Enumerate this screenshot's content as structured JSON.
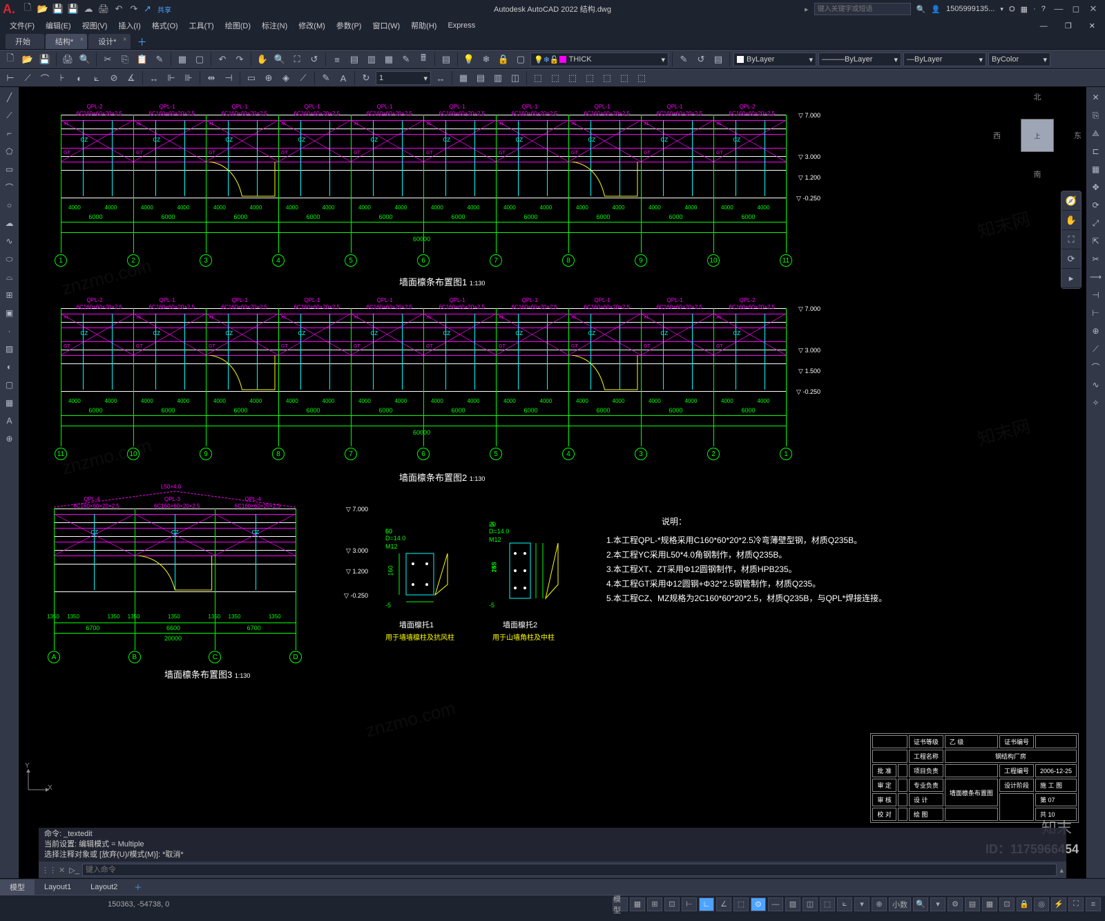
{
  "app": {
    "title": "Autodesk AutoCAD 2022   结构.dwg",
    "search_ph": "键入关键字或短语",
    "user": "1505999135..."
  },
  "menubar": [
    "文件(F)",
    "编辑(E)",
    "视图(V)",
    "插入(I)",
    "格式(O)",
    "工具(T)",
    "绘图(D)",
    "标注(N)",
    "修改(M)",
    "参数(P)",
    "窗口(W)",
    "帮助(H)",
    "Express"
  ],
  "filetabs": {
    "tabs": [
      "开始",
      "结构*",
      "设计*"
    ],
    "active_idx": 1
  },
  "layer": {
    "current": "THICK",
    "color": "ByLayer",
    "ltype": "ByLayer",
    "lweight": "ByLayer",
    "plot": "ByColor"
  },
  "dyn_input": "1",
  "layouts": {
    "items": [
      "模型",
      "Layout1",
      "Layout2"
    ],
    "active_idx": 0
  },
  "status": {
    "coords": "150363, -54738, 0",
    "scale": "小数"
  },
  "cmd": {
    "hist": [
      "命令: _textedit",
      "当前设置: 编辑模式 = Multiple",
      "选择注释对象或 [放弃(U)/模式(M)]: *取消*"
    ],
    "placeholder": "键入命令"
  },
  "viewcube": {
    "n": "北",
    "s": "南",
    "e": "东",
    "w": "西",
    "face": "上"
  },
  "drawings": {
    "d1": {
      "title": "墙面檩条布置图1",
      "scale": "1:130",
      "grids": [
        "1",
        "2",
        "3",
        "4",
        "5",
        "6",
        "7",
        "8",
        "9",
        "10",
        "11"
      ],
      "bay": "6000",
      "edge": "4000",
      "total": "60000",
      "levels": [
        "7.000",
        "3.000",
        "1.200",
        "-0.250"
      ],
      "qpl": [
        "QPL-2",
        "QPL-1",
        "QPL-1",
        "QPL-1",
        "QPL-1",
        "QPL-1",
        "QPL-1",
        "QPL-1",
        "QPL-1",
        "QPL-2"
      ],
      "c_spec": "6C160×60×20×2.5",
      "small_labels": [
        "XL",
        "CZ",
        "GT",
        "YC"
      ]
    },
    "d2": {
      "title": "墙面檩条布置图2",
      "scale": "1:130",
      "grids": [
        "11",
        "10",
        "9",
        "8",
        "7",
        "6",
        "5",
        "4",
        "3",
        "2",
        "1"
      ],
      "bay": "6000",
      "edge": "4000",
      "total": "60000",
      "levels": [
        "7.000",
        "3.000",
        "1.500",
        "-0.250"
      ],
      "qpl": [
        "QPL-2",
        "QPL-1",
        "QPL-1",
        "QPL-1",
        "QPL-1",
        "QPL-1",
        "QPL-1",
        "QPL-1",
        "QPL-1",
        "QPL-2"
      ],
      "c_spec": "6C160×60×20×2.5"
    },
    "d3": {
      "title": "墙面檩条布置图3",
      "scale": "1:130",
      "grids": [
        "A",
        "B",
        "C",
        "D"
      ],
      "bays": [
        "6700",
        "6600",
        "6700"
      ],
      "sub": "1350",
      "total": "20000",
      "levels": [
        "7.000",
        "3.000",
        "1.200",
        "-0.250"
      ],
      "qpl": [
        "QPL-4",
        "QPL-3",
        "QPL-4"
      ],
      "c_spec": "6C160×60×20×2.5",
      "angle": "L50×4.0"
    },
    "det1": {
      "title": "墙面檩托1",
      "note": "用于墙墙檩柱及抗风柱",
      "d": "D=14.0",
      "m": "M12",
      "h": "160",
      "off": "-5",
      "w1": "50",
      "w2": "60"
    },
    "det2": {
      "title": "墙面檩托2",
      "note": "用于山墙角柱及中柱",
      "d": "D=14.0",
      "m": "M12",
      "h": "253",
      "h2": "145",
      "off": "-5",
      "w": "20"
    }
  },
  "notes": {
    "head": "说明：",
    "items": [
      "1.本工程QPL-*规格采用C160*60*20*2.5冷弯薄壁型钢，材质Q235B。",
      "2.本工程YC采用L50*4.0角钢制作，材质Q235B。",
      "3.本工程XT、ZT采用Φ12圆钢制作，材质HPB235。",
      "4.本工程GT采用Φ12圆钢+Φ32*2.5钢管制作，材质Q235。",
      "5.本工程CZ、MZ规格为2C160*60*20*2.5，材质Q235B，与QPL*焊接连接。"
    ]
  },
  "titleblock": {
    "rows": [
      [
        "证书等级",
        "乙  级",
        "证书编号",
        ""
      ],
      [
        "工程名称",
        "",
        "钢结构厂房",
        ""
      ],
      [
        "批    准",
        "",
        "项目负责",
        "",
        "",
        "工程编号",
        "2006-12-25"
      ],
      [
        "审    定",
        "",
        "专业负责",
        "",
        "墙面檩条布置图",
        "设计阶段",
        "施 工 图"
      ],
      [
        "审    核",
        "",
        "设    计",
        "",
        "",
        "",
        "第 07"
      ],
      [
        "校    对",
        "",
        "绘    图",
        "",
        "",
        "",
        "共 10"
      ]
    ]
  },
  "watermark": {
    "id": "ID：1175966454",
    "brand": "知末"
  },
  "colors": {
    "bg_ui": "#1e2330",
    "panel": "#323848",
    "line": "#454c5f",
    "canvas": "#000",
    "green": "#0f0",
    "magenta": "#ff00ff",
    "cyan": "#0ff",
    "yellow": "#ff0",
    "white": "#fff"
  }
}
